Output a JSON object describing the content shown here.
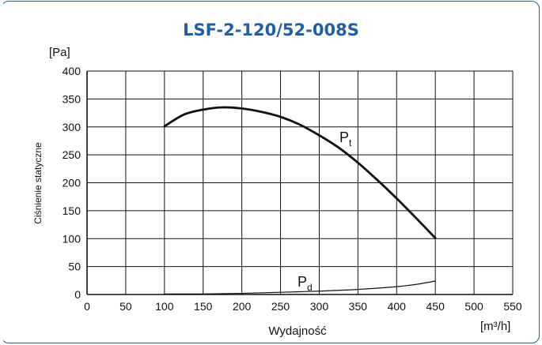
{
  "chart_data": {
    "type": "line",
    "title": "LSF-2-120/52-008S",
    "xlabel": "Wydajność",
    "x_unit": "[m³/h]",
    "ylabel": "Ciśnienie statyczne",
    "y_unit": "[Pa]",
    "xlim": [
      0,
      550
    ],
    "ylim": [
      0,
      400
    ],
    "x_ticks": [
      0,
      50,
      100,
      150,
      200,
      250,
      300,
      350,
      400,
      450,
      500,
      550
    ],
    "y_ticks": [
      0,
      50,
      100,
      150,
      200,
      250,
      300,
      350,
      400
    ],
    "grid": true,
    "series": [
      {
        "name": "Pt",
        "name_main": "P",
        "name_sub": "t",
        "x": [
          100,
          125,
          150,
          175,
          200,
          225,
          250,
          275,
          300,
          325,
          350,
          375,
          400,
          425,
          450
        ],
        "y": [
          301,
          322,
          331,
          335,
          333,
          327,
          318,
          304,
          285,
          263,
          236,
          205,
          172,
          137,
          101
        ]
      },
      {
        "name": "Pd",
        "name_main": "P",
        "name_sub": "d",
        "x": [
          100,
          150,
          200,
          250,
          300,
          350,
          400,
          425,
          450
        ],
        "y": [
          1,
          1,
          2,
          4,
          6,
          9,
          14,
          18,
          24
        ]
      }
    ]
  }
}
